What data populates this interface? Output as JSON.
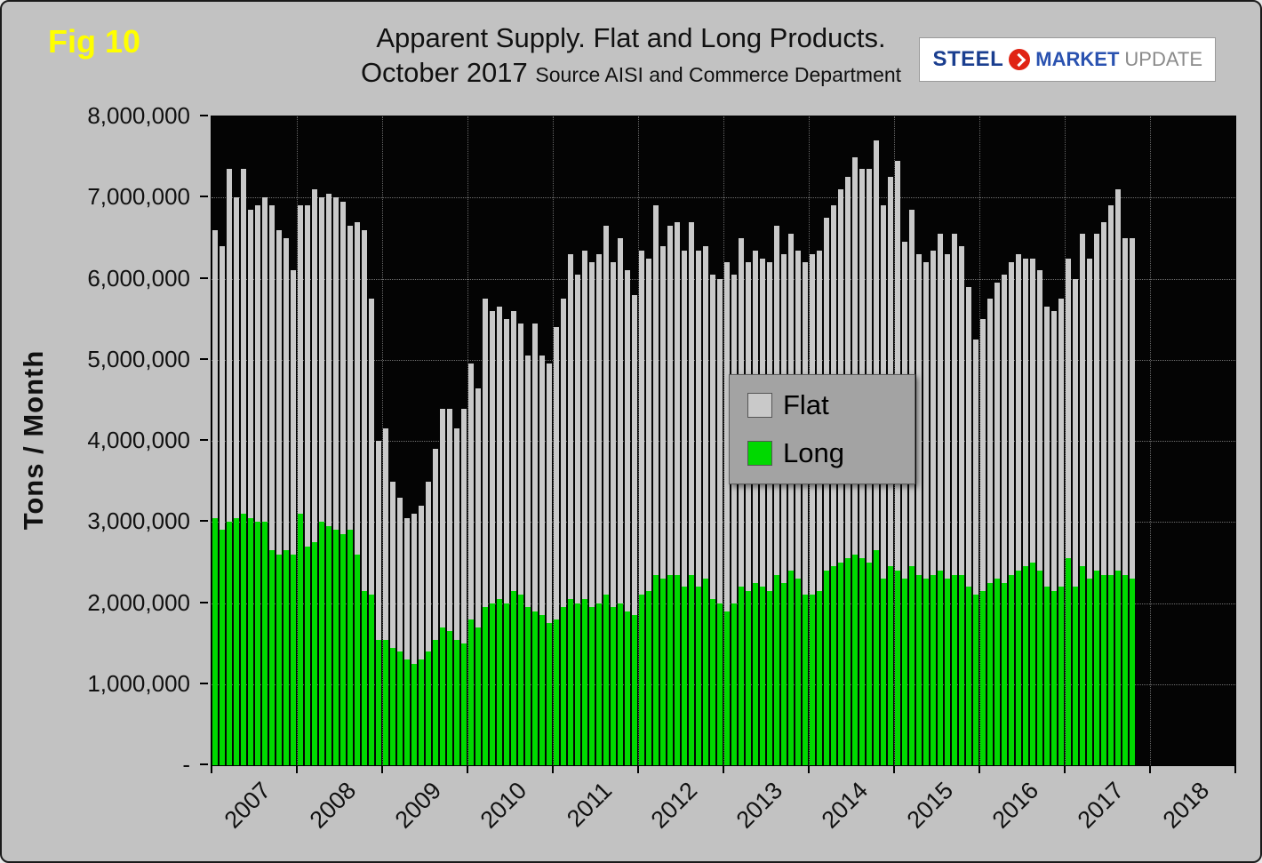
{
  "header": {
    "fig_label": "Fig 10",
    "title_line1": "Apparent Supply. Flat and Long Products.",
    "title_line2": "October 2017",
    "title_source": "Source AISI and Commerce Department"
  },
  "logo": {
    "steel": "STEEL",
    "market": "MARKET",
    "update": "UPDATE"
  },
  "y_axis": {
    "ticks": [
      "8,000,000",
      "7,000,000",
      "6,000,000",
      "5,000,000",
      "4,000,000",
      "3,000,000",
      "2,000,000",
      "1,000,000",
      "-"
    ]
  },
  "legend": {
    "items": [
      {
        "label": "Flat",
        "color": "#c9c9c9"
      },
      {
        "label": "Long",
        "color": "#00d900"
      }
    ]
  },
  "chart_data": {
    "type": "bar",
    "stacked": true,
    "title": "Apparent Supply. Flat and Long Products. October 2017",
    "source": "Source AISI and Commerce Department",
    "ylabel": "Tons / Month",
    "unit": "tons/month",
    "ylim": [
      0,
      8000000
    ],
    "y_tick_interval": 1000000,
    "frequency": "monthly",
    "x_start": "2007-01",
    "x_end": "2017-10",
    "x_axis_years": [
      "2007",
      "2008",
      "2009",
      "2010",
      "2011",
      "2012",
      "2013",
      "2014",
      "2015",
      "2016",
      "2017",
      "2018"
    ],
    "grid": true,
    "plot_background": "#000000",
    "legend_position": "center",
    "series": [
      {
        "name": "Long",
        "color": "#00d900",
        "values": [
          3050000,
          2900000,
          3000000,
          3050000,
          3100000,
          3050000,
          3000000,
          3000000,
          2650000,
          2600000,
          2650000,
          2600000,
          3100000,
          2700000,
          2750000,
          3000000,
          2950000,
          2900000,
          2850000,
          2900000,
          2600000,
          2150000,
          2100000,
          1550000,
          1550000,
          1450000,
          1400000,
          1300000,
          1250000,
          1300000,
          1400000,
          1550000,
          1700000,
          1650000,
          1550000,
          1500000,
          1800000,
          1700000,
          1950000,
          2000000,
          2050000,
          2000000,
          2150000,
          2100000,
          1950000,
          1900000,
          1850000,
          1750000,
          1800000,
          1950000,
          2050000,
          2000000,
          2050000,
          1950000,
          2000000,
          2100000,
          1950000,
          2000000,
          1900000,
          1850000,
          2100000,
          2150000,
          2350000,
          2300000,
          2350000,
          2350000,
          2200000,
          2350000,
          2200000,
          2300000,
          2050000,
          2000000,
          1900000,
          2000000,
          2200000,
          2150000,
          2250000,
          2200000,
          2150000,
          2350000,
          2250000,
          2400000,
          2300000,
          2100000,
          2100000,
          2150000,
          2400000,
          2450000,
          2500000,
          2550000,
          2600000,
          2550000,
          2500000,
          2650000,
          2300000,
          2450000,
          2400000,
          2300000,
          2450000,
          2350000,
          2300000,
          2350000,
          2400000,
          2300000,
          2350000,
          2350000,
          2200000,
          2100000,
          2150000,
          2250000,
          2300000,
          2250000,
          2350000,
          2400000,
          2450000,
          2500000,
          2400000,
          2200000,
          2150000,
          2200000,
          2550000,
          2200000,
          2450000,
          2300000,
          2400000,
          2350000,
          2350000,
          2400000,
          2350000,
          2300000
        ]
      },
      {
        "name": "Flat",
        "color": "#c9c9c9",
        "values": [
          3550000,
          3500000,
          4350000,
          3950000,
          4250000,
          3800000,
          3900000,
          4000000,
          4250000,
          4000000,
          3850000,
          3500000,
          3800000,
          4200000,
          4350000,
          4000000,
          4100000,
          4100000,
          4100000,
          3750000,
          4100000,
          4450000,
          3650000,
          2450000,
          2600000,
          2050000,
          1900000,
          1750000,
          1850000,
          1900000,
          2100000,
          2350000,
          2700000,
          2750000,
          2600000,
          2900000,
          3150000,
          2950000,
          3800000,
          3600000,
          3600000,
          3500000,
          3450000,
          3350000,
          3100000,
          3550000,
          3200000,
          3200000,
          3600000,
          3800000,
          4250000,
          4050000,
          4300000,
          4250000,
          4300000,
          4550000,
          4250000,
          4500000,
          4200000,
          3950000,
          4250000,
          4100000,
          4550000,
          4100000,
          4300000,
          4350000,
          4150000,
          4350000,
          4150000,
          4100000,
          4000000,
          4000000,
          4300000,
          4050000,
          4300000,
          4050000,
          4100000,
          4050000,
          4050000,
          4300000,
          4050000,
          4150000,
          4050000,
          4100000,
          4200000,
          4200000,
          4350000,
          4450000,
          4600000,
          4700000,
          4900000,
          4800000,
          4850000,
          5050000,
          4600000,
          4800000,
          5050000,
          4150000,
          4400000,
          3950000,
          3900000,
          4000000,
          4150000,
          4000000,
          4200000,
          4050000,
          3700000,
          3150000,
          3350000,
          3500000,
          3650000,
          3800000,
          3850000,
          3900000,
          3800000,
          3750000,
          3700000,
          3450000,
          3450000,
          3550000,
          3700000,
          3800000,
          4100000,
          3950000,
          4150000,
          4350000,
          4550000,
          4700000,
          4150000,
          4200000
        ]
      }
    ]
  }
}
